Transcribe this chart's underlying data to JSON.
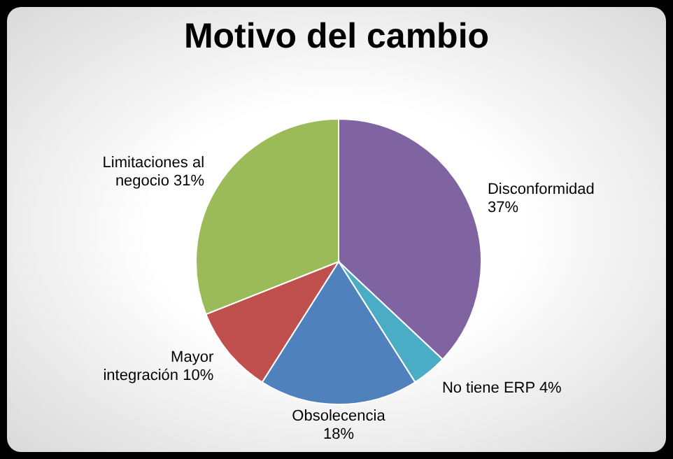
{
  "chart_data": {
    "type": "pie",
    "title": "Motivo del cambio",
    "categories": [
      "Disconformidad",
      "No tiene ERP",
      "Obsolecencia",
      "Mayor integración",
      "Limitaciones al negocio"
    ],
    "values": [
      37,
      4,
      18,
      10,
      31
    ],
    "colors": [
      "#8064a2",
      "#4bacc6",
      "#4f81bd",
      "#c0504d",
      "#9bbb59"
    ],
    "value_labels": [
      "37%",
      "4%",
      "18%",
      "10%",
      "31%"
    ]
  }
}
